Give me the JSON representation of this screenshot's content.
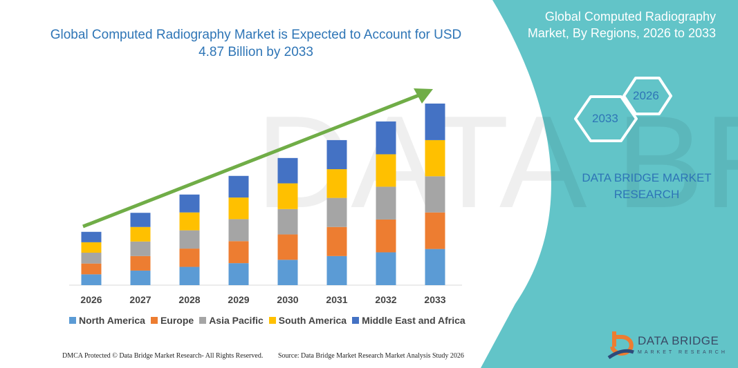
{
  "header": {
    "title": "Global Computed Radiography Market is Expected to Account for USD 4.87 Billion by 2033"
  },
  "side_panel": {
    "title": "Global Computed Radiography Market, By Regions, 2026 to 2033",
    "hex_start": "2026",
    "hex_end": "2033",
    "brand_line": "DATA BRIDGE MARKET RESEARCH",
    "panel_color": "#62c4c8"
  },
  "footer": {
    "copyright": "DMCA Protected © Data Bridge Market Research- All Rights Reserved.",
    "source": "Source: Data Bridge Market Research Market Analysis Study 2026"
  },
  "logo": {
    "name": "DATA BRIDGE",
    "sub": "MARKET RESEARCH"
  },
  "chart_data": {
    "type": "bar",
    "stacked": true,
    "title": "Global Computed Radiography Market is Expected to Account for USD 4.87 Billion by 2033",
    "xlabel": "",
    "ylabel": "",
    "grid": false,
    "legend_position": "bottom",
    "trend_arrow": true,
    "trend_arrow_color": "#70ad47",
    "categories": [
      "2026",
      "2027",
      "2028",
      "2029",
      "2030",
      "2031",
      "2032",
      "2033"
    ],
    "series": [
      {
        "name": "North America",
        "color": "#5b9bd5",
        "values": [
          0.29,
          0.39,
          0.49,
          0.59,
          0.68,
          0.78,
          0.88,
          0.97
        ]
      },
      {
        "name": "Europe",
        "color": "#ed7d31",
        "values": [
          0.29,
          0.39,
          0.49,
          0.59,
          0.68,
          0.78,
          0.88,
          0.98
        ]
      },
      {
        "name": "Asia Pacific",
        "color": "#a5a5a5",
        "values": [
          0.29,
          0.39,
          0.49,
          0.59,
          0.68,
          0.78,
          0.88,
          0.97
        ]
      },
      {
        "name": "South America",
        "color": "#ffc000",
        "values": [
          0.28,
          0.39,
          0.48,
          0.58,
          0.69,
          0.77,
          0.87,
          0.97
        ]
      },
      {
        "name": "Middle East and Africa",
        "color": "#4472c4",
        "values": [
          0.28,
          0.38,
          0.48,
          0.58,
          0.68,
          0.78,
          0.88,
          0.98
        ]
      }
    ]
  }
}
